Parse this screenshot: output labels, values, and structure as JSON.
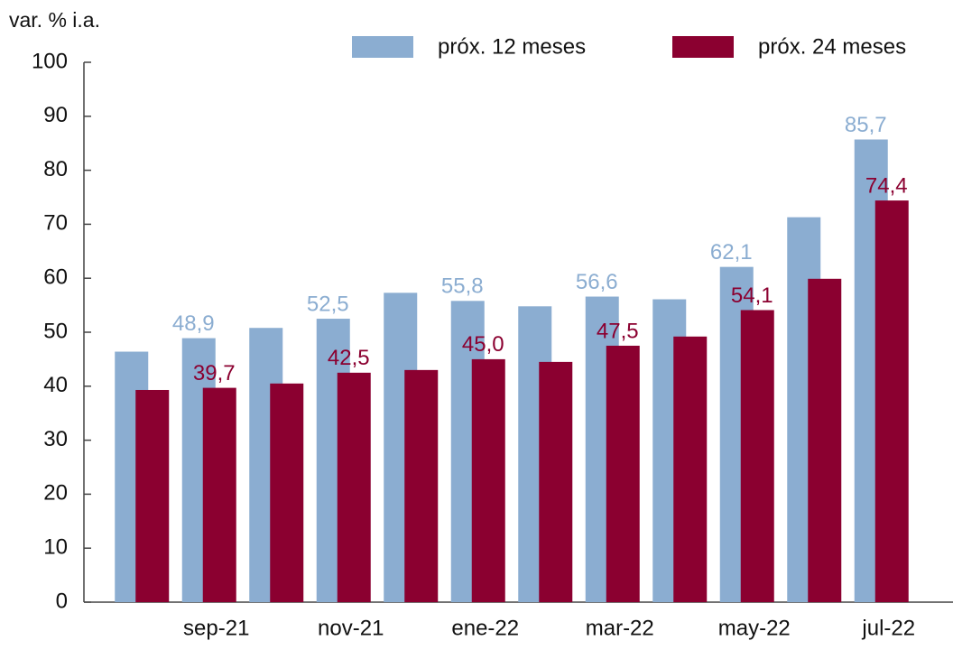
{
  "chart_data": {
    "type": "bar",
    "y_label": "var. % i.a.",
    "categories": [
      null,
      "sep-21",
      null,
      "nov-21",
      null,
      "ene-22",
      null,
      "mar-22",
      null,
      "may-22",
      null,
      "jul-22"
    ],
    "series": [
      {
        "name": "próx. 12 meses",
        "color": "#8badd1",
        "values": [
          46.4,
          48.9,
          50.8,
          52.5,
          57.3,
          55.8,
          54.8,
          56.6,
          56.1,
          62.1,
          71.3,
          85.7
        ],
        "value_labels": [
          null,
          "48,9",
          null,
          "52,5",
          null,
          "55,8",
          null,
          "56,6",
          null,
          "62,1",
          null,
          "85,7"
        ]
      },
      {
        "name": "próx. 24 meses",
        "color": "#8b0030",
        "values": [
          39.3,
          39.7,
          40.5,
          42.5,
          43.0,
          45.0,
          44.5,
          47.5,
          49.2,
          54.1,
          59.9,
          74.4
        ],
        "value_labels": [
          null,
          "39,7",
          null,
          "42,5",
          null,
          "45,0",
          null,
          "47,5",
          null,
          "54,1",
          null,
          "74,4"
        ]
      }
    ],
    "ylim": [
      0,
      100
    ],
    "yticks": [
      0,
      10,
      20,
      30,
      40,
      50,
      60,
      70,
      80,
      90,
      100
    ]
  }
}
